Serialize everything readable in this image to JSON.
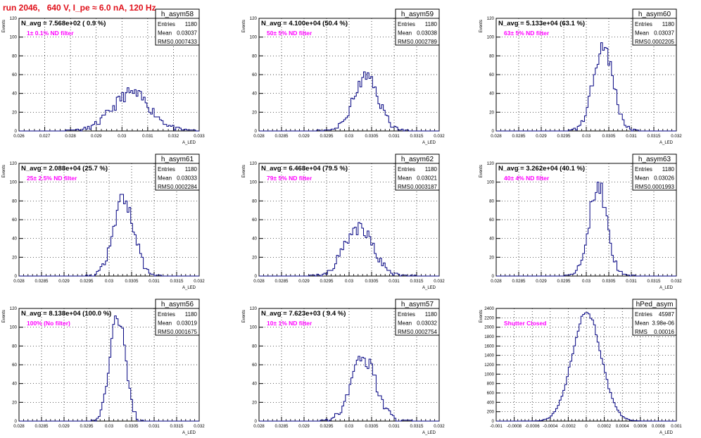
{
  "title": "run 2046,   640 V, I_pe ≈ 6.0 nA, 120 Hz",
  "x_axis_label": "A_LED",
  "y_axis_label": "Events",
  "colors": {
    "title": "#e0101a",
    "annot": "#ff00ff",
    "hist": "#000080",
    "frame": "#000000",
    "grid": "#000000"
  },
  "chart_data": [
    {
      "type": "bar",
      "name": "h_asym58",
      "entries": "1180",
      "mean": "0.03037",
      "rms": "0.0007433",
      "navg": "N_avg = 7.568e+02 ( 0.9 %)",
      "filter": "1± 0.1% ND filter",
      "xlim": [
        0.026,
        0.033
      ],
      "ylim": [
        0,
        120
      ],
      "xticks": [
        "0.026",
        "0.027",
        "0.028",
        "0.029",
        "0.03",
        "0.031",
        "0.032",
        "0.033"
      ],
      "yticks": [
        "0",
        "20",
        "40",
        "60",
        "80",
        "100",
        "120"
      ],
      "mu": 0.03037,
      "sigma": 0.0007433,
      "peak": 40,
      "seed": 11
    },
    {
      "type": "bar",
      "name": "h_asym59",
      "entries": "1180",
      "mean": "0.03038",
      "rms": "0.0002789",
      "navg": "N_avg = 4.100e+04 (50.4 %)",
      "filter": "50± 5% ND filter",
      "xlim": [
        0.028,
        0.032
      ],
      "ylim": [
        0,
        120
      ],
      "xticks": [
        "0.028",
        "0.0285",
        "0.029",
        "0.0295",
        "0.03",
        "0.0305",
        "0.031",
        "0.0315",
        "0.032"
      ],
      "yticks": [
        "0",
        "20",
        "40",
        "60",
        "80",
        "100",
        "120"
      ],
      "mu": 0.03038,
      "sigma": 0.0002789,
      "peak": 57,
      "seed": 23
    },
    {
      "type": "bar",
      "name": "h_asym60",
      "entries": "1180",
      "mean": "0.03037",
      "rms": "0.0002205",
      "navg": "N_avg = 5.133e+04 (63.1 %)",
      "filter": "63± 5% ND filter",
      "xlim": [
        0.028,
        0.032
      ],
      "ylim": [
        0,
        120
      ],
      "xticks": [
        "0.028",
        "0.0285",
        "0.029",
        "0.0295",
        "0.03",
        "0.0305",
        "0.031",
        "0.0315",
        "0.032"
      ],
      "yticks": [
        "0",
        "20",
        "40",
        "60",
        "80",
        "100",
        "120"
      ],
      "mu": 0.03037,
      "sigma": 0.0002205,
      "peak": 92,
      "seed": 37
    },
    {
      "type": "bar",
      "name": "h_asym61",
      "entries": "1180",
      "mean": "0.03033",
      "rms": "0.0002284",
      "navg": "N_avg = 2.088e+04 (25.7 %)",
      "filter": "25± 2.5% ND filter",
      "xlim": [
        0.028,
        0.032
      ],
      "ylim": [
        0,
        120
      ],
      "xticks": [
        "0.028",
        "0.0285",
        "0.029",
        "0.0295",
        "0.03",
        "0.0305",
        "0.031",
        "0.0315",
        "0.032"
      ],
      "yticks": [
        "0",
        "20",
        "40",
        "60",
        "80",
        "100",
        "120"
      ],
      "mu": 0.03033,
      "sigma": 0.0002284,
      "peak": 82,
      "seed": 41
    },
    {
      "type": "bar",
      "name": "h_asym62",
      "entries": "1180",
      "mean": "0.03021",
      "rms": "0.0003187",
      "navg": "N_avg = 6.468e+04 (79.5 %)",
      "filter": "79± 5% ND filter",
      "xlim": [
        0.028,
        0.032
      ],
      "ylim": [
        0,
        120
      ],
      "xticks": [
        "0.028",
        "0.0285",
        "0.029",
        "0.0295",
        "0.03",
        "0.0305",
        "0.031",
        "0.0315",
        "0.032"
      ],
      "yticks": [
        "0",
        "20",
        "40",
        "60",
        "80",
        "100",
        "120"
      ],
      "mu": 0.03021,
      "sigma": 0.0003187,
      "peak": 52,
      "seed": 53
    },
    {
      "type": "bar",
      "name": "h_asym63",
      "entries": "1180",
      "mean": "0.03026",
      "rms": "0.0001993",
      "navg": "N_avg = 3.262e+04 (40.1 %)",
      "filter": "40± 4% ND filter",
      "xlim": [
        0.028,
        0.032
      ],
      "ylim": [
        0,
        120
      ],
      "xticks": [
        "0.028",
        "0.0285",
        "0.029",
        "0.0295",
        "0.03",
        "0.0305",
        "0.031",
        "0.0315",
        "0.032"
      ],
      "yticks": [
        "0",
        "20",
        "40",
        "60",
        "80",
        "100",
        "120"
      ],
      "mu": 0.03026,
      "sigma": 0.0001993,
      "peak": 98,
      "seed": 67
    },
    {
      "type": "bar",
      "name": "h_asym56",
      "entries": "1180",
      "mean": "0.03019",
      "rms": "0.0001675",
      "navg": "N_avg = 8.138e+04 (100.0 %)",
      "filter": "100% (No filter)",
      "xlim": [
        0.028,
        0.032
      ],
      "ylim": [
        0,
        120
      ],
      "xticks": [
        "0.028",
        "0.0285",
        "0.029",
        "0.0295",
        "0.03",
        "0.0305",
        "0.031",
        "0.0315",
        "0.032"
      ],
      "yticks": [
        "0",
        "20",
        "40",
        "60",
        "80",
        "100",
        "120"
      ],
      "mu": 0.03019,
      "sigma": 0.0001675,
      "peak": 112,
      "seed": 79
    },
    {
      "type": "bar",
      "name": "h_asym57",
      "entries": "1180",
      "mean": "0.03032",
      "rms": "0.0002754",
      "navg": "N_avg = 7.623e+03 ( 9.4 %)",
      "filter": "10± 1% ND filter",
      "xlim": [
        0.028,
        0.032
      ],
      "ylim": [
        0,
        120
      ],
      "xticks": [
        "0.028",
        "0.0285",
        "0.029",
        "0.0295",
        "0.03",
        "0.0305",
        "0.031",
        "0.0315",
        "0.032"
      ],
      "yticks": [
        "0",
        "20",
        "40",
        "60",
        "80",
        "100",
        "120"
      ],
      "mu": 0.03032,
      "sigma": 0.0002754,
      "peak": 68,
      "seed": 83
    },
    {
      "type": "bar",
      "name": "hPed_asym",
      "entries": "45987",
      "mean": "3.98e-06",
      "rms": "0.00016",
      "navg": "",
      "filter": "Shutter Closed",
      "xlim": [
        -0.001,
        0.001
      ],
      "ylim": [
        0,
        2400
      ],
      "xticks": [
        "-0.001",
        "-0.0008",
        "-0.0006",
        "-0.0004",
        "-0.0002",
        "0",
        "0.0002",
        "0.0004",
        "0.0006",
        "0.0008",
        "0.001"
      ],
      "yticks": [
        "0",
        "200",
        "400",
        "600",
        "800",
        "1000",
        "1200",
        "1400",
        "1600",
        "1800",
        "2000",
        "2200",
        "2400"
      ],
      "mu": 3.98e-06,
      "sigma": 0.00016,
      "peak": 2330,
      "seed": 97
    }
  ]
}
